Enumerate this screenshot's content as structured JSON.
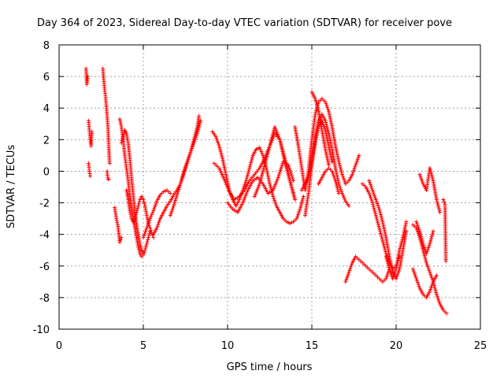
{
  "chart_data": {
    "type": "scatter",
    "title": "Day 364 of 2023, Sidereal Day-to-day VTEC variation (SDTVAR) for receiver pove",
    "xlabel": "GPS time / hours",
    "ylabel": "SDTVAR / TECUs",
    "xlim": [
      0,
      25
    ],
    "ylim": [
      -10,
      8
    ],
    "xticks": [
      0,
      5,
      10,
      15,
      20,
      25
    ],
    "yticks": [
      -10,
      -8,
      -6,
      -4,
      -2,
      0,
      2,
      4,
      6,
      8
    ],
    "grid": true,
    "marker": "+",
    "color": "#ff0000",
    "series": [
      {
        "name": "s1",
        "x": [
          1.6,
          1.65,
          1.7
        ],
        "y": [
          6.5,
          5.5,
          6.0
        ]
      },
      {
        "name": "s2",
        "x": [
          1.75,
          1.8,
          1.85,
          1.9,
          1.95
        ],
        "y": [
          3.2,
          2.6,
          2.0,
          1.6,
          2.5
        ]
      },
      {
        "name": "s3",
        "x": [
          1.75,
          1.8,
          1.85
        ],
        "y": [
          0.5,
          0.0,
          -0.3
        ]
      },
      {
        "name": "s4",
        "x": [
          2.6,
          2.65,
          2.7,
          2.75,
          2.8,
          2.85,
          2.9,
          2.95,
          3.0
        ],
        "y": [
          6.5,
          5.8,
          5.2,
          4.8,
          4.2,
          3.5,
          2.8,
          1.5,
          0.5
        ]
      },
      {
        "name": "s5",
        "x": [
          2.85,
          2.9,
          2.95
        ],
        "y": [
          0.0,
          -0.5,
          -0.5
        ]
      },
      {
        "name": "s6",
        "x": [
          3.3,
          3.4,
          3.5,
          3.6,
          3.7
        ],
        "y": [
          -2.3,
          -3.0,
          -3.5,
          -4.5,
          -4.2
        ]
      },
      {
        "name": "s7",
        "x": [
          3.6,
          3.7,
          3.8,
          3.9,
          4.0,
          4.1,
          4.2,
          4.3,
          4.4,
          4.5,
          4.6,
          4.7,
          4.8,
          4.9,
          5.0,
          5.1,
          5.2,
          5.3,
          5.4
        ],
        "y": [
          3.3,
          2.8,
          2.0,
          1.0,
          0.2,
          -0.6,
          -1.5,
          -2.3,
          -3.0,
          -3.6,
          -4.2,
          -4.8,
          -5.2,
          -5.4,
          -5.3,
          -5.0,
          -4.6,
          -4.2,
          -3.8
        ]
      },
      {
        "name": "s8",
        "x": [
          3.7,
          3.8,
          3.9,
          4.0,
          4.1,
          4.2,
          4.3,
          4.4,
          4.5,
          4.6,
          4.7,
          4.8,
          4.9,
          5.0
        ],
        "y": [
          1.8,
          2.2,
          2.6,
          2.4,
          1.8,
          0.8,
          -0.4,
          -1.5,
          -2.6,
          -3.4,
          -4.0,
          -4.6,
          -5.0,
          -5.2
        ]
      },
      {
        "name": "s9",
        "x": [
          4.0,
          4.1,
          4.2,
          4.3,
          4.4,
          4.5,
          4.6,
          4.7,
          4.8,
          4.9,
          5.0,
          5.1,
          5.2,
          5.3,
          5.4,
          5.5,
          5.6
        ],
        "y": [
          -1.2,
          -1.8,
          -2.5,
          -3.0,
          -3.2,
          -3.0,
          -2.6,
          -2.2,
          -1.8,
          -1.6,
          -1.8,
          -2.2,
          -2.8,
          -3.3,
          -3.6,
          -3.9,
          -4.2
        ]
      },
      {
        "name": "s10",
        "x": [
          5.0,
          5.2,
          5.4,
          5.6,
          5.8,
          6.0,
          6.2,
          6.4,
          6.6
        ],
        "y": [
          -4.2,
          -3.6,
          -3.0,
          -2.5,
          -1.9,
          -1.5,
          -1.3,
          -1.2,
          -1.4
        ]
      },
      {
        "name": "s11",
        "x": [
          5.6,
          5.8,
          6.0,
          6.2,
          6.4,
          6.6,
          6.8,
          7.0,
          7.2,
          7.4,
          7.6,
          7.8,
          8.0,
          8.2,
          8.3
        ],
        "y": [
          -4.0,
          -3.6,
          -3.0,
          -2.6,
          -2.2,
          -1.9,
          -1.5,
          -1.2,
          -0.8,
          -0.2,
          0.5,
          1.2,
          2.0,
          2.8,
          3.5
        ]
      },
      {
        "name": "s12",
        "x": [
          6.6,
          6.8,
          7.0,
          7.2,
          7.4,
          7.6,
          7.8,
          8.0,
          8.2,
          8.4
        ],
        "y": [
          -2.8,
          -2.2,
          -1.5,
          -0.8,
          0.0,
          0.6,
          1.2,
          1.8,
          2.4,
          3.2
        ]
      },
      {
        "name": "s13",
        "x": [
          9.1,
          9.3,
          9.5,
          9.7,
          9.9,
          10.1,
          10.3,
          10.5,
          10.7,
          10.9,
          11.1,
          11.3,
          11.5,
          11.7,
          11.9,
          12.1,
          12.3,
          12.5,
          12.7,
          12.9,
          13.1,
          13.3,
          13.5,
          13.7,
          13.9,
          14.1,
          14.3,
          14.5
        ],
        "y": [
          2.5,
          2.2,
          1.6,
          0.8,
          -0.2,
          -1.2,
          -1.8,
          -2.2,
          -1.8,
          -1.2,
          -0.6,
          0.2,
          1.0,
          1.4,
          1.5,
          1.0,
          0.2,
          -0.8,
          -1.6,
          -2.2,
          -2.6,
          -3.0,
          -3.2,
          -3.3,
          -3.2,
          -3.0,
          -2.4,
          -1.6
        ]
      },
      {
        "name": "s14",
        "x": [
          9.2,
          9.5,
          9.8,
          10.1,
          10.4,
          10.7,
          11.0,
          11.3,
          11.6,
          11.9,
          12.2,
          12.5,
          12.8,
          13.1,
          13.4,
          13.7,
          14.0
        ],
        "y": [
          0.5,
          0.2,
          -0.5,
          -1.3,
          -1.8,
          -1.6,
          -1.2,
          -0.6,
          -0.2,
          0.2,
          0.8,
          1.6,
          2.4,
          2.0,
          0.8,
          -0.6,
          -1.8
        ]
      },
      {
        "name": "s15",
        "x": [
          10.0,
          10.3,
          10.6,
          10.9,
          11.2,
          11.5,
          11.8,
          12.1,
          12.4,
          12.7,
          13.0,
          13.3,
          13.6,
          13.9
        ],
        "y": [
          -2.0,
          -2.4,
          -2.6,
          -2.0,
          -1.2,
          -0.6,
          -0.4,
          -0.8,
          -1.4,
          -1.2,
          -0.4,
          0.6,
          0.4,
          -0.6
        ]
      },
      {
        "name": "s16",
        "x": [
          11.6,
          11.9,
          12.2,
          12.5,
          12.8,
          13.1,
          13.4,
          13.7,
          14.0
        ],
        "y": [
          -1.6,
          -0.8,
          0.4,
          1.6,
          2.8,
          2.0,
          0.6,
          -0.6,
          -1.8
        ]
      },
      {
        "name": "s17",
        "x": [
          14.0,
          14.2,
          14.4,
          14.6,
          14.8,
          15.0,
          15.2,
          15.4,
          15.6,
          15.8,
          16.0,
          16.2,
          16.4,
          16.6,
          16.8,
          17.0,
          17.2,
          17.4,
          17.6,
          17.8
        ],
        "y": [
          2.8,
          1.6,
          0.2,
          -1.2,
          0.0,
          2.0,
          3.6,
          4.4,
          4.6,
          4.4,
          3.8,
          2.8,
          1.6,
          0.6,
          -0.2,
          -0.8,
          -0.6,
          -0.2,
          0.4,
          1.0
        ]
      },
      {
        "name": "s18",
        "x": [
          14.6,
          14.8,
          15.0,
          15.2,
          15.4,
          15.6,
          15.8,
          16.0,
          16.2,
          16.4,
          16.6,
          16.8,
          17.0,
          17.2
        ],
        "y": [
          -2.8,
          -1.4,
          0.4,
          2.2,
          3.2,
          3.6,
          3.2,
          2.4,
          1.4,
          0.2,
          -0.8,
          -1.4,
          -1.9,
          -2.2
        ]
      },
      {
        "name": "s19",
        "x": [
          14.4,
          14.6,
          14.8,
          15.0,
          15.2,
          15.4,
          15.6,
          15.8,
          16.0,
          16.2
        ],
        "y": [
          -1.2,
          -0.8,
          -0.4,
          0.6,
          1.8,
          2.8,
          3.2,
          2.6,
          1.6,
          0.6
        ]
      },
      {
        "name": "s20",
        "x": [
          15.0,
          15.2,
          15.4,
          15.6,
          15.8,
          16.0
        ],
        "y": [
          5.0,
          4.6,
          3.8,
          2.6,
          1.4,
          0.4
        ]
      },
      {
        "name": "s21",
        "x": [
          15.4,
          15.6,
          15.8,
          16.0,
          16.2,
          16.4,
          16.6
        ],
        "y": [
          -0.8,
          -0.4,
          0.0,
          0.2,
          0.0,
          -0.6,
          -1.4
        ]
      },
      {
        "name": "s22",
        "x": [
          17.0,
          17.2,
          17.4,
          17.6,
          17.8,
          18.0,
          18.2,
          18.4,
          18.6,
          18.8,
          19.0,
          19.2,
          19.4,
          19.6
        ],
        "y": [
          -7.0,
          -6.4,
          -5.8,
          -5.4,
          -5.6,
          -5.8,
          -6.0,
          -6.2,
          -6.4,
          -6.6,
          -6.8,
          -7.0,
          -6.8,
          -6.2
        ]
      },
      {
        "name": "s23",
        "x": [
          18.4,
          18.6,
          18.8,
          19.0,
          19.2,
          19.4,
          19.6,
          19.8,
          20.0,
          20.2,
          20.4,
          20.6
        ],
        "y": [
          -0.6,
          -1.2,
          -1.8,
          -2.4,
          -3.2,
          -4.2,
          -5.4,
          -6.4,
          -6.8,
          -6.2,
          -5.0,
          -3.8
        ]
      },
      {
        "name": "s24",
        "x": [
          18.0,
          18.2,
          18.4,
          18.6,
          18.8,
          19.0,
          19.2,
          19.4,
          19.6,
          19.8,
          20.0,
          20.2
        ],
        "y": [
          -0.8,
          -1.0,
          -1.4,
          -2.0,
          -2.8,
          -3.6,
          -4.4,
          -5.2,
          -5.8,
          -6.2,
          -6.0,
          -5.4
        ]
      },
      {
        "name": "s25",
        "x": [
          19.4,
          19.6,
          19.8,
          20.0,
          20.2,
          20.4,
          20.6
        ],
        "y": [
          -5.4,
          -6.2,
          -6.8,
          -6.2,
          -5.0,
          -4.2,
          -3.2
        ]
      },
      {
        "name": "s26",
        "x": [
          21.0,
          21.2,
          21.4,
          21.6,
          21.8,
          22.0,
          22.2,
          22.4,
          22.6,
          22.8,
          23.0
        ],
        "y": [
          -3.4,
          -3.6,
          -4.2,
          -5.0,
          -5.8,
          -6.4,
          -7.0,
          -7.8,
          -8.4,
          -8.8,
          -9.0
        ]
      },
      {
        "name": "s27",
        "x": [
          21.0,
          21.2,
          21.4,
          21.6,
          21.8,
          22.0,
          22.2,
          22.4
        ],
        "y": [
          -6.2,
          -6.8,
          -7.4,
          -7.8,
          -8.0,
          -7.6,
          -7.0,
          -6.6
        ]
      },
      {
        "name": "s28",
        "x": [
          21.4,
          21.6,
          21.8,
          22.0,
          22.2,
          22.4,
          22.6
        ],
        "y": [
          -0.2,
          -0.8,
          -1.2,
          0.2,
          -0.6,
          -1.8,
          -2.6
        ]
      },
      {
        "name": "s29",
        "x": [
          21.2,
          21.4,
          21.6,
          21.8,
          22.0,
          22.2
        ],
        "y": [
          -3.2,
          -3.8,
          -4.6,
          -5.2,
          -4.6,
          -3.8
        ]
      },
      {
        "name": "s30",
        "x": [
          22.8,
          22.9,
          22.95
        ],
        "y": [
          -1.8,
          -2.1,
          -5.7
        ]
      }
    ]
  }
}
